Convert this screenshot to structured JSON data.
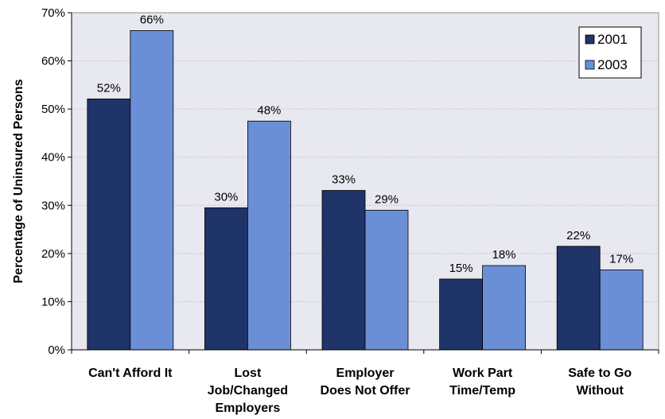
{
  "chart_data": {
    "type": "bar",
    "title": "",
    "xlabel": "",
    "ylabel": "Percentage of Uninsured Persons",
    "ylim": [
      0,
      70
    ],
    "yticks": [
      "0%",
      "10%",
      "20%",
      "30%",
      "40%",
      "50%",
      "60%",
      "70%"
    ],
    "categories": [
      [
        "Can't Afford It"
      ],
      [
        "Lost",
        "Job/Changed",
        "Employers"
      ],
      [
        "Employer",
        "Does Not Offer"
      ],
      [
        "Work Part",
        "Time/Temp"
      ],
      [
        "Safe to Go",
        "Without"
      ]
    ],
    "series": [
      {
        "name": "2001",
        "color": "#1f3468",
        "values": [
          52.1,
          29.5,
          33.1,
          14.7,
          21.5
        ],
        "labels": [
          "52%",
          "30%",
          "33%",
          "15%",
          "22%"
        ]
      },
      {
        "name": "2003",
        "color": "#6a8fd6",
        "values": [
          66.3,
          47.5,
          29.0,
          17.5,
          16.6
        ],
        "labels": [
          "66%",
          "48%",
          "29%",
          "18%",
          "17%"
        ]
      }
    ],
    "grid": true,
    "legend_position": "top-right",
    "plot_background": "#e8e8f0"
  }
}
